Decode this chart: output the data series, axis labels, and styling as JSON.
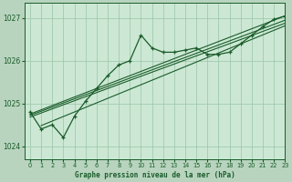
{
  "title": "Graphe pression niveau de la mer (hPa)",
  "background_color": "#b8d4be",
  "plot_bg_color": "#cce8d4",
  "grid_color": "#99c4a8",
  "line_color": "#1a5c2a",
  "xlim": [
    -0.5,
    23
  ],
  "ylim": [
    1023.7,
    1027.35
  ],
  "yticks": [
    1024,
    1025,
    1026,
    1027
  ],
  "xticks": [
    0,
    1,
    2,
    3,
    4,
    5,
    6,
    7,
    8,
    9,
    10,
    11,
    12,
    13,
    14,
    15,
    16,
    17,
    18,
    19,
    20,
    21,
    22,
    23
  ],
  "wavy_series": [
    1024.8,
    1024.4,
    1024.5,
    1024.2,
    1024.7,
    1025.05,
    1025.35,
    1025.65,
    1025.9,
    1026.0,
    1026.6,
    1026.3,
    1026.2,
    1026.2,
    1026.25,
    1026.3,
    1026.15,
    1026.15,
    1026.2,
    1026.4,
    1026.6,
    1026.8,
    1026.97,
    1027.05
  ],
  "straight_lines": [
    [
      [
        0,
        1024.75
      ],
      [
        23,
        1027.05
      ]
    ],
    [
      [
        0,
        1024.72
      ],
      [
        23,
        1026.95
      ]
    ],
    [
      [
        0,
        1024.68
      ],
      [
        23,
        1026.88
      ]
    ],
    [
      [
        1,
        1024.48
      ],
      [
        23,
        1026.82
      ]
    ]
  ]
}
